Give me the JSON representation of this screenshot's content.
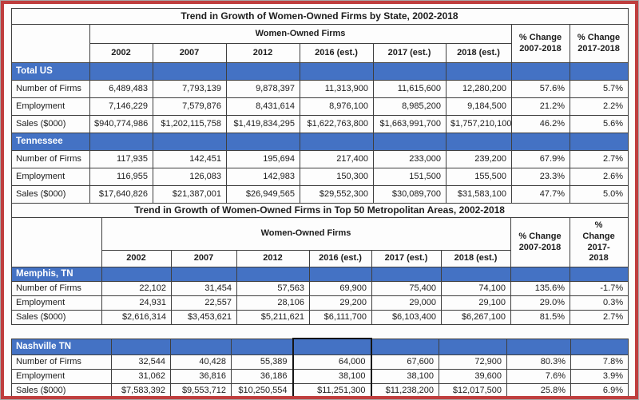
{
  "page": {
    "accent_blue": "#4472c4",
    "frame_red": "#bf3e3e",
    "frame_gray": "#a8a8a8"
  },
  "state_table": {
    "title": "Trend in Growth of Women-Owned Firms by State, 2002-2018",
    "group_header": "Women-Owned Firms",
    "years": [
      "2002",
      "2007",
      "2012",
      "2016 (est.)",
      "2017 (est.)",
      "2018 (est.)"
    ],
    "pct_headers": [
      "% Change\n2007-2018",
      "% Change\n2017-2018"
    ],
    "sections": [
      {
        "name": "Total US",
        "rows": [
          [
            "Number of Firms",
            "6,489,483",
            "7,793,139",
            "9,878,397",
            "11,313,900",
            "11,615,600",
            "12,280,200",
            "57.6%",
            "5.7%"
          ],
          [
            "Employment",
            "7,146,229",
            "7,579,876",
            "8,431,614",
            "8,976,100",
            "8,985,200",
            "9,184,500",
            "21.2%",
            "2.2%"
          ],
          [
            "Sales ($000)",
            "$940,774,986",
            "$1,202,115,758",
            "$1,419,834,295",
            "$1,622,763,800",
            "$1,663,991,700",
            "$1,757,210,100",
            "46.2%",
            "5.6%"
          ]
        ]
      },
      {
        "name": "Tennessee",
        "rows": [
          [
            "Number of Firms",
            "117,935",
            "142,451",
            "195,694",
            "217,400",
            "233,000",
            "239,200",
            "67.9%",
            "2.7%"
          ],
          [
            "Employment",
            "116,955",
            "126,083",
            "142,983",
            "150,300",
            "151,500",
            "155,500",
            "23.3%",
            "2.6%"
          ],
          [
            "Sales ($000)",
            "$17,640,826",
            "$21,387,001",
            "$26,949,565",
            "$29,552,300",
            "$30,089,700",
            "$31,583,100",
            "47.7%",
            "5.0%"
          ]
        ]
      }
    ]
  },
  "metro_table": {
    "title": "Trend in Growth of Women-Owned Firms in Top 50 Metropolitan Areas, 2002-2018",
    "group_header": "Women-Owned Firms",
    "years": [
      "2002",
      "2007",
      "2012",
      "2016 (est.)",
      "2017 (est.)",
      "2018 (est.)"
    ],
    "pct_headers": [
      "% Change\n2007-2018",
      "%\nChange\n2017-\n2018"
    ],
    "sections": [
      {
        "name": "Memphis, TN",
        "rows": [
          [
            "Number of Firms",
            "22,102",
            "31,454",
            "57,563",
            "69,900",
            "75,400",
            "74,100",
            "135.6%",
            "-1.7%"
          ],
          [
            "Employment",
            "24,931",
            "22,557",
            "28,106",
            "29,200",
            "29,000",
            "29,100",
            "29.0%",
            "0.3%"
          ],
          [
            "Sales ($000)",
            "$2,616,314",
            "$3,453,621",
            "$5,211,621",
            "$6,111,700",
            "$6,103,400",
            "$6,267,100",
            "81.5%",
            "2.7%"
          ]
        ]
      }
    ]
  },
  "metro_table2": {
    "selected_column": 4,
    "sections": [
      {
        "name": "Nashville TN",
        "rows": [
          [
            "Number of Firms",
            "32,544",
            "40,428",
            "55,389",
            "64,000",
            "67,600",
            "72,900",
            "80.3%",
            "7.8%"
          ],
          [
            "Employment",
            "31,062",
            "36,816",
            "36,186",
            "38,100",
            "38,100",
            "39,600",
            "7.6%",
            "3.9%"
          ],
          [
            "Sales ($000)",
            "$7,583,392",
            "$9,553,712",
            "$10,250,554",
            "$11,251,300",
            "$11,238,200",
            "$12,017,500",
            "25.8%",
            "6.9%"
          ]
        ]
      }
    ]
  }
}
